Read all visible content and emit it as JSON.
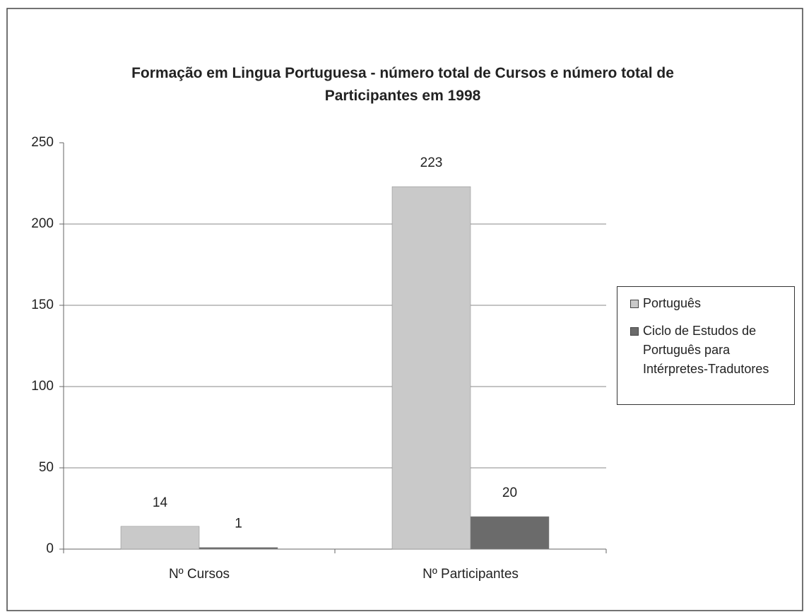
{
  "chart_data": {
    "type": "bar",
    "title": "Formação em Lingua Portuguesa - número total de Cursos e número total de Participantes em 1998",
    "categories": [
      "Nº Cursos",
      "Nº Participantes"
    ],
    "series": [
      {
        "name": "Português",
        "color": "#c9c9c9",
        "values": [
          14,
          223
        ]
      },
      {
        "name": "Ciclo de Estudos de Português para Intérpretes-Tradutores",
        "color": "#6b6b6b",
        "values": [
          1,
          20
        ]
      }
    ],
    "ylim": [
      0,
      250
    ],
    "yticks": [
      0,
      50,
      100,
      150,
      200,
      250
    ],
    "grid": true,
    "legend": "right"
  }
}
